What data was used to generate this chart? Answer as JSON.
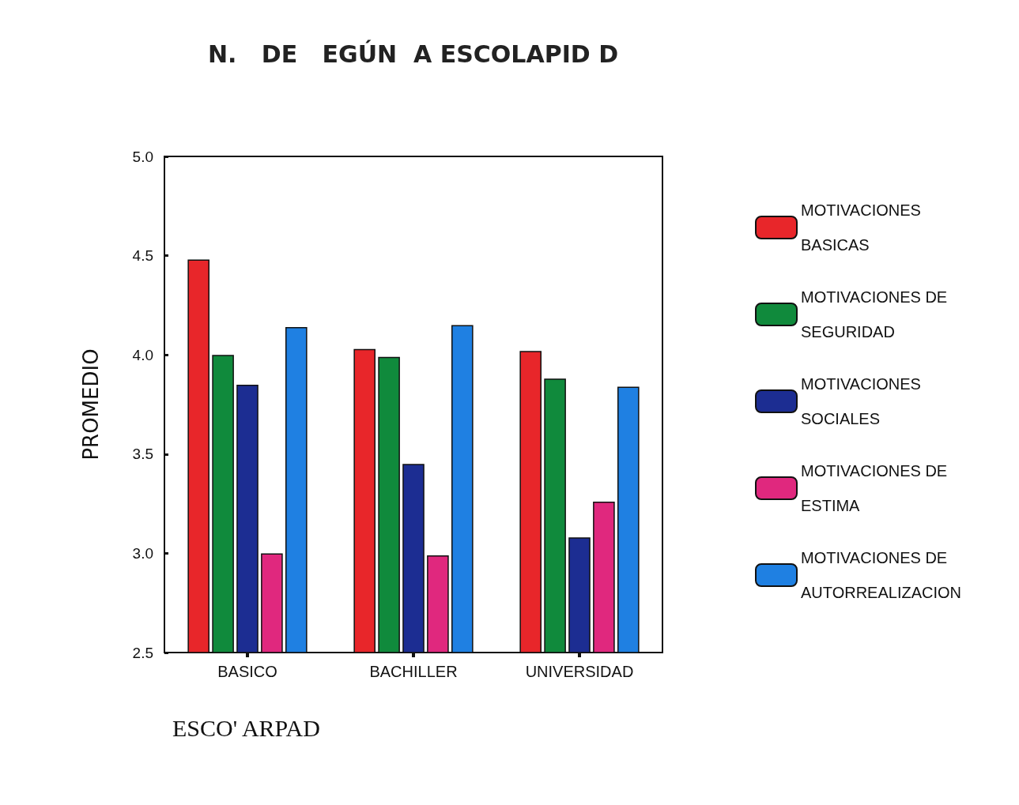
{
  "chart_data": {
    "type": "bar",
    "title": "N.   DE   EGÚN  A ESCOLAPID D",
    "xlabel": "ESCO' ARPAD",
    "ylabel": "PROMEDIO",
    "categories": [
      "BASICO",
      "BACHILLER",
      "UNIVERSIDAD"
    ],
    "series": [
      {
        "name": "MOTIVACIONES BASICAS",
        "color": "#e8262a",
        "values": [
          4.48,
          4.03,
          4.02
        ]
      },
      {
        "name": "MOTIVACIONES DE SEGURIDAD",
        "color": "#108a3c",
        "values": [
          4.0,
          3.99,
          3.88
        ]
      },
      {
        "name": "MOTIVACIONES SOCIALES",
        "color": "#1c2d92",
        "values": [
          3.85,
          3.45,
          3.08
        ]
      },
      {
        "name": "MOTIVACIONES DE ESTIMA",
        "color": "#e0287e",
        "values": [
          3.0,
          2.99,
          3.26
        ]
      },
      {
        "name": "MOTIVACIONES DE AUTORREALIZACION",
        "color": "#1f80e2",
        "values": [
          4.14,
          4.15,
          3.84
        ]
      }
    ],
    "ylim": [
      2.5,
      5.0
    ],
    "yticks": [
      2.5,
      {
        "value": 3,
        "label": "3.0"
      },
      3.5,
      {
        "value": 4,
        "label": "4.0"
      },
      4.5,
      {
        "value": 5,
        "label": "5.0"
      }
    ],
    "grid": false,
    "legend": "right"
  }
}
